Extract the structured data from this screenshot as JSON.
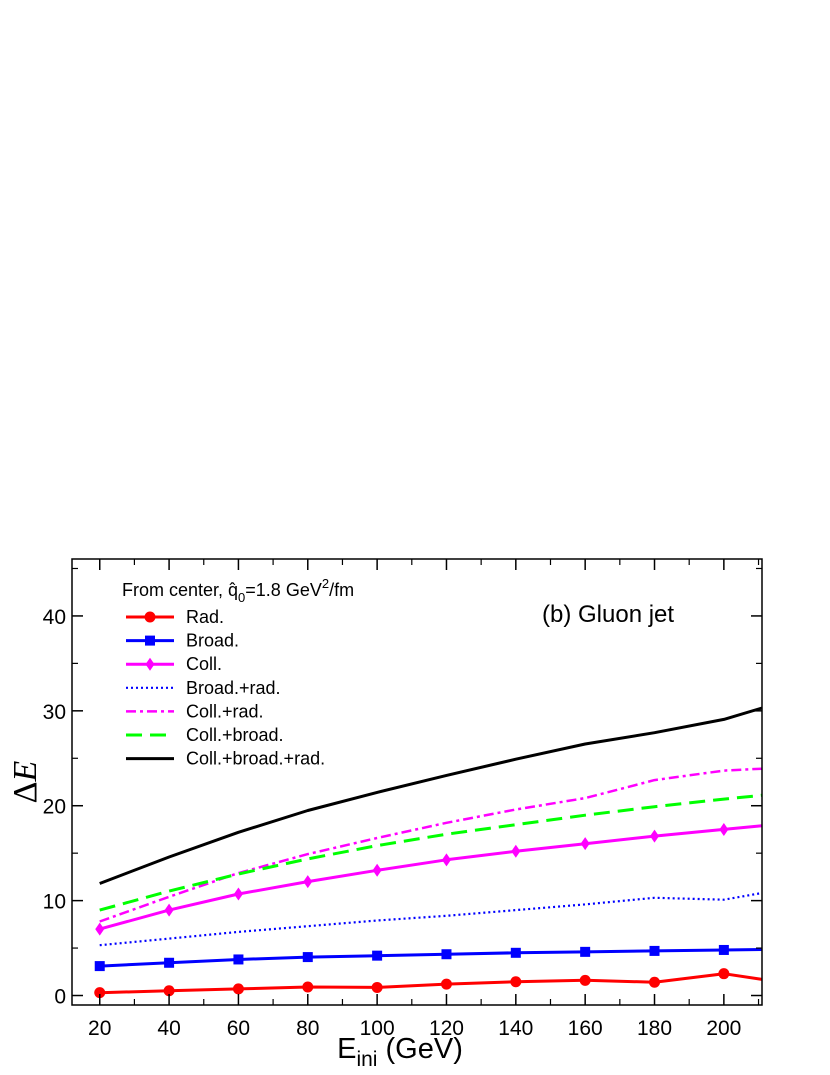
{
  "chart_data": {
    "type": "line",
    "xlabel": "E",
    "xlabel_sub": "ini",
    "xlabel_unit": " (GeV)",
    "ylabel_delta": "Δ",
    "ylabel_var": "E",
    "xlim": [
      12,
      211
    ],
    "ylim": [
      -1,
      46
    ],
    "xticks": [
      20,
      40,
      60,
      80,
      100,
      120,
      140,
      160,
      180,
      200
    ],
    "yticks": [
      0,
      10,
      20,
      30,
      40
    ],
    "grid": false,
    "legend_title": {
      "prefix": "From center, ",
      "qhat": "q̂",
      "sub": "0",
      "mid": "=1.8 GeV",
      "sup": "2",
      "suffix": "/fm"
    },
    "legend_position": "top-left",
    "annotation": "(b) Gluon jet",
    "series": [
      {
        "name": "Rad.",
        "color": "#ff0000",
        "style": "solid",
        "marker": "circle",
        "x": [
          20,
          40,
          60,
          80,
          100,
          120,
          140,
          160,
          180,
          200,
          211
        ],
        "y": [
          0.3,
          0.5,
          0.7,
          0.9,
          0.85,
          1.2,
          1.45,
          1.6,
          1.4,
          2.3,
          1.7
        ]
      },
      {
        "name": "Broad.",
        "color": "#0000ff",
        "style": "solid",
        "marker": "square",
        "x": [
          20,
          40,
          60,
          80,
          100,
          120,
          140,
          160,
          180,
          200,
          211
        ],
        "y": [
          3.1,
          3.45,
          3.8,
          4.05,
          4.2,
          4.35,
          4.5,
          4.6,
          4.7,
          4.8,
          4.85
        ]
      },
      {
        "name": "Coll.",
        "color": "#ff00ff",
        "style": "solid",
        "marker": "diamond",
        "x": [
          20,
          40,
          60,
          80,
          100,
          120,
          140,
          160,
          180,
          200,
          211
        ],
        "y": [
          7.0,
          9.0,
          10.7,
          12.0,
          13.2,
          14.3,
          15.2,
          16.0,
          16.8,
          17.5,
          17.9
        ]
      },
      {
        "name": "Broad.+rad.",
        "color": "#0000ff",
        "style": "dotted",
        "marker": "none",
        "x": [
          20,
          40,
          60,
          80,
          100,
          120,
          140,
          160,
          180,
          200,
          211
        ],
        "y": [
          5.3,
          6.0,
          6.7,
          7.3,
          7.9,
          8.4,
          9.0,
          9.6,
          10.3,
          10.1,
          10.8
        ]
      },
      {
        "name": "Coll.+rad.",
        "color": "#ff00ff",
        "style": "dashdot",
        "marker": "none",
        "x": [
          20,
          40,
          60,
          80,
          100,
          120,
          140,
          160,
          180,
          200,
          211
        ],
        "y": [
          7.8,
          10.4,
          12.9,
          14.9,
          16.6,
          18.2,
          19.6,
          20.8,
          22.7,
          23.7,
          23.9
        ]
      },
      {
        "name": "Coll.+broad.",
        "color": "#00ff00",
        "style": "dashed",
        "marker": "none",
        "x": [
          20,
          40,
          60,
          80,
          100,
          120,
          140,
          160,
          180,
          200,
          211
        ],
        "y": [
          9.0,
          11.0,
          12.8,
          14.4,
          15.8,
          17.0,
          18.0,
          19.0,
          19.9,
          20.7,
          21.1
        ]
      },
      {
        "name": "Coll.+broad.+rad.",
        "color": "#000000",
        "style": "solid",
        "marker": "none",
        "x": [
          20,
          40,
          60,
          80,
          100,
          120,
          140,
          160,
          180,
          200,
          211
        ],
        "y": [
          11.8,
          14.6,
          17.2,
          19.5,
          21.4,
          23.2,
          24.9,
          26.5,
          27.7,
          29.1,
          30.3
        ]
      }
    ]
  }
}
